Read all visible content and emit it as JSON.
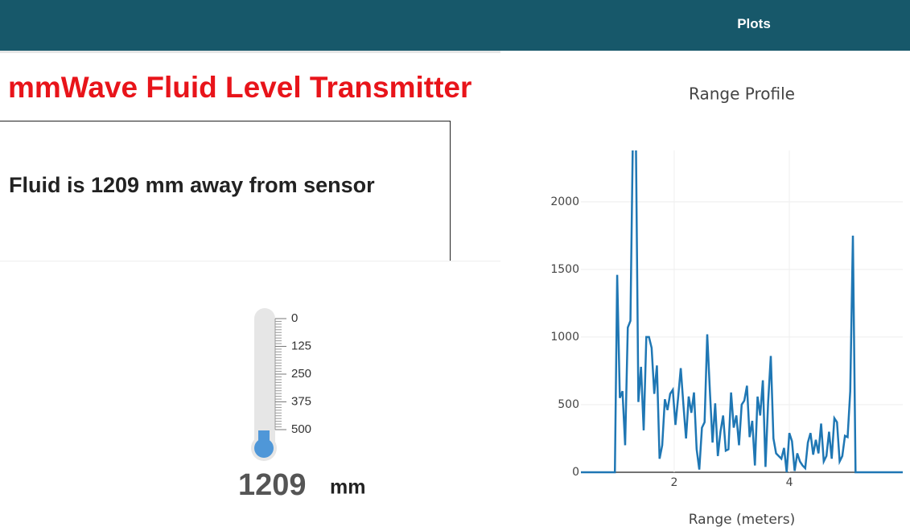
{
  "nav": {
    "link": "Plots"
  },
  "header": {
    "title": "mmWave Fluid Level Transmitter"
  },
  "status": {
    "message": "Fluid is 1209 mm away from sensor"
  },
  "gauge": {
    "value": 1209,
    "unit": "mm",
    "range": [
      0,
      500
    ],
    "ticks": [
      0,
      125,
      250,
      375,
      500
    ]
  },
  "chart_data": {
    "type": "line",
    "title": "Range Profile",
    "x_label": "Range (meters)",
    "color": "#1f77b4",
    "x": [
      0.38,
      0.97,
      1.01,
      1.056,
      1.102,
      1.148,
      1.194,
      1.24,
      1.286,
      1.332,
      1.378,
      1.424,
      1.47,
      1.516,
      1.562,
      1.608,
      1.654,
      1.7,
      1.746,
      1.792,
      1.838,
      1.884,
      1.93,
      1.976,
      2.022,
      2.068,
      2.114,
      2.16,
      2.206,
      2.252,
      2.298,
      2.344,
      2.39,
      2.436,
      2.482,
      2.528,
      2.574,
      2.62,
      2.666,
      2.712,
      2.758,
      2.804,
      2.85,
      2.896,
      2.942,
      2.988,
      3.034,
      3.08,
      3.126,
      3.172,
      3.218,
      3.264,
      3.31,
      3.356,
      3.402,
      3.448,
      3.494,
      3.54,
      3.586,
      3.632,
      3.678,
      3.724,
      3.77,
      3.816,
      3.862,
      3.908,
      3.954,
      4.0,
      4.046,
      4.092,
      4.138,
      4.184,
      4.23,
      4.276,
      4.322,
      4.368,
      4.414,
      4.46,
      4.506,
      4.552,
      4.598,
      4.644,
      4.69,
      4.736,
      4.782,
      4.828,
      4.874,
      4.92,
      4.966,
      5.012,
      5.058,
      5.104,
      5.15,
      5.97
    ],
    "values": [
      0,
      0,
      1460,
      550,
      600,
      200,
      1070,
      1120,
      2600,
      2600,
      520,
      780,
      310,
      1000,
      1000,
      920,
      580,
      790,
      100,
      200,
      540,
      460,
      580,
      610,
      350,
      550,
      770,
      500,
      250,
      560,
      440,
      590,
      170,
      20,
      330,
      370,
      1020,
      600,
      220,
      510,
      120,
      300,
      420,
      160,
      170,
      590,
      330,
      420,
      200,
      500,
      530,
      640,
      260,
      380,
      50,
      560,
      420,
      680,
      40,
      520,
      860,
      250,
      140,
      120,
      100,
      180,
      0,
      290,
      230,
      10,
      140,
      80,
      50,
      30,
      220,
      290,
      130,
      240,
      140,
      360,
      80,
      120,
      300,
      100,
      400,
      370,
      80,
      120,
      270,
      260,
      600,
      1750,
      0,
      0
    ],
    "xlim": [
      0.38,
      5.97
    ],
    "ylim": [
      0,
      2380
    ],
    "xticks": [
      2,
      4
    ],
    "yticks": [
      0,
      500,
      1000,
      1500,
      2000
    ],
    "grid": true
  }
}
